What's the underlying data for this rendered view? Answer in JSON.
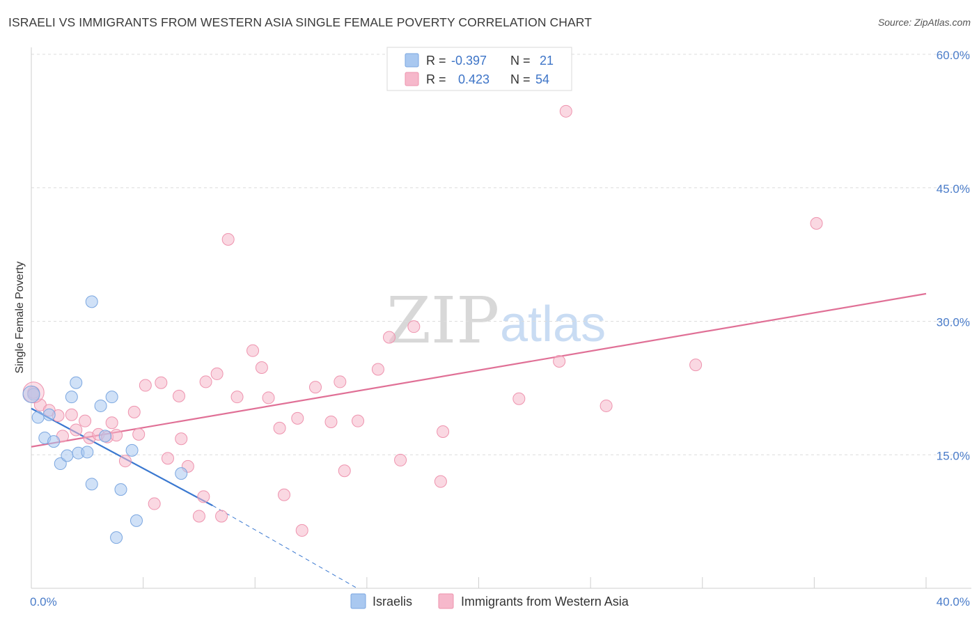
{
  "header": {
    "title": "ISRAELI VS IMMIGRANTS FROM WESTERN ASIA SINGLE FEMALE POVERTY CORRELATION CHART",
    "source": "Source: ZipAtlas.com"
  },
  "watermark": {
    "zip": "ZIP",
    "atlas": "atlas"
  },
  "legend_top": {
    "rows": [
      {
        "r_label": "R =",
        "r_value": "-0.397",
        "n_label": "N =",
        "n_value": "21",
        "color": "#a9c8f0"
      },
      {
        "r_label": "R =",
        "r_value": "0.423",
        "n_label": "N =",
        "n_value": "54",
        "color": "#f6b8cb"
      }
    ]
  },
  "colors": {
    "blue_fill": "#a9c8f0",
    "blue_stroke": "#7aa6e0",
    "blue_line": "#3a78d0",
    "pink_fill": "#f6b8cb",
    "pink_stroke": "#ee93ae",
    "pink_line": "#e07096",
    "tick_text": "#4a7cc9"
  },
  "chart_data": {
    "type": "scatter",
    "title": "ISRAELI VS IMMIGRANTS FROM WESTERN ASIA SINGLE FEMALE POVERTY CORRELATION CHART",
    "xlabel": "",
    "ylabel": "Single Female Poverty",
    "xlim": [
      0,
      40
    ],
    "ylim": [
      0,
      60
    ],
    "x_tick_labels": [
      "0.0%",
      "40.0%"
    ],
    "y_ticks": [
      15,
      30,
      45,
      60
    ],
    "y_tick_labels": [
      "15.0%",
      "30.0%",
      "45.0%",
      "60.0%"
    ],
    "grid": true,
    "legend_position": "top-center",
    "series": [
      {
        "name": "Israelis",
        "color": "#a9c8f0",
        "points": [
          [
            0.1,
            21.8
          ],
          [
            0.3,
            19.2
          ],
          [
            0.6,
            16.9
          ],
          [
            0.8,
            19.5
          ],
          [
            1.0,
            16.5
          ],
          [
            1.3,
            14.0
          ],
          [
            1.6,
            14.9
          ],
          [
            1.8,
            21.5
          ],
          [
            2.0,
            23.1
          ],
          [
            2.1,
            15.2
          ],
          [
            2.5,
            15.3
          ],
          [
            2.7,
            11.7
          ],
          [
            2.7,
            32.2
          ],
          [
            3.1,
            20.5
          ],
          [
            3.3,
            17.1
          ],
          [
            3.6,
            21.5
          ],
          [
            3.8,
            5.7
          ],
          [
            4.0,
            11.1
          ],
          [
            4.5,
            15.5
          ],
          [
            4.7,
            7.6
          ],
          [
            6.7,
            12.9
          ]
        ],
        "trend": {
          "x": [
            0,
            8.1
          ],
          "y": [
            20.2,
            9.3
          ],
          "dashed_to": [
            14.5,
            0.1
          ]
        }
      },
      {
        "name": "Immigrants from Western Asia",
        "color": "#f6b8cb",
        "points": [
          [
            0.1,
            22.0
          ],
          [
            0.4,
            20.6
          ],
          [
            0.8,
            20.0
          ],
          [
            1.2,
            19.4
          ],
          [
            1.4,
            17.1
          ],
          [
            1.8,
            19.5
          ],
          [
            2.0,
            17.8
          ],
          [
            2.4,
            18.8
          ],
          [
            2.6,
            16.9
          ],
          [
            3.0,
            17.3
          ],
          [
            3.4,
            17.0
          ],
          [
            3.6,
            18.6
          ],
          [
            3.8,
            17.2
          ],
          [
            4.2,
            14.3
          ],
          [
            4.6,
            19.8
          ],
          [
            4.8,
            17.3
          ],
          [
            5.1,
            22.8
          ],
          [
            5.5,
            9.5
          ],
          [
            5.8,
            23.1
          ],
          [
            6.1,
            14.6
          ],
          [
            6.6,
            21.6
          ],
          [
            6.7,
            16.8
          ],
          [
            7.0,
            13.7
          ],
          [
            7.5,
            8.1
          ],
          [
            7.7,
            10.3
          ],
          [
            7.8,
            23.2
          ],
          [
            8.3,
            24.1
          ],
          [
            8.5,
            8.1
          ],
          [
            8.8,
            39.2
          ],
          [
            9.2,
            21.5
          ],
          [
            9.9,
            26.7
          ],
          [
            10.6,
            21.4
          ],
          [
            10.3,
            24.8
          ],
          [
            11.1,
            18.0
          ],
          [
            11.3,
            10.5
          ],
          [
            11.9,
            19.1
          ],
          [
            12.1,
            6.5
          ],
          [
            12.7,
            22.6
          ],
          [
            13.4,
            18.7
          ],
          [
            13.8,
            23.2
          ],
          [
            14.0,
            13.2
          ],
          [
            14.6,
            18.8
          ],
          [
            15.5,
            24.6
          ],
          [
            16.0,
            28.2
          ],
          [
            16.5,
            14.4
          ],
          [
            17.1,
            29.4
          ],
          [
            18.3,
            12.0
          ],
          [
            18.4,
            17.6
          ],
          [
            21.8,
            21.3
          ],
          [
            23.6,
            25.5
          ],
          [
            23.9,
            53.6
          ],
          [
            25.7,
            20.5
          ],
          [
            29.7,
            25.1
          ],
          [
            35.1,
            41.0
          ]
        ],
        "trend": {
          "x": [
            0,
            40
          ],
          "y": [
            15.9,
            33.1
          ]
        }
      }
    ]
  },
  "legend_bottom": {
    "items": [
      {
        "label": "Israelis",
        "color": "#a9c8f0"
      },
      {
        "label": "Immigrants from Western Asia",
        "color": "#f6b8cb"
      }
    ]
  }
}
